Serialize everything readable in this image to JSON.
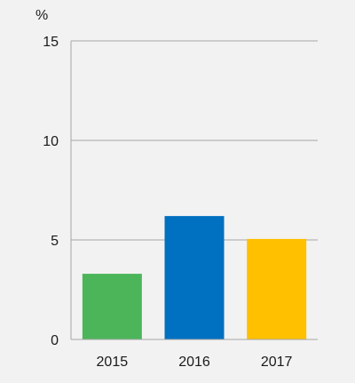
{
  "chart_data": {
    "type": "bar",
    "ylabel": "%",
    "categories": [
      "2015",
      "2016",
      "2017"
    ],
    "values": [
      3.3,
      6.2,
      5.05
    ],
    "colors": [
      "#4cb55a",
      "#0070c0",
      "#ffc000"
    ],
    "ylim": [
      0,
      15
    ],
    "yticks": [
      0,
      5,
      10,
      15
    ],
    "grid": true,
    "legend": "none"
  }
}
